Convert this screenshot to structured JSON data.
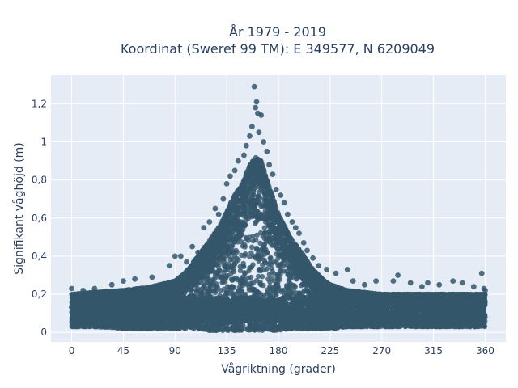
{
  "chart_data": {
    "type": "scatter",
    "title": [
      "År 1979 - 2019",
      "Koordinat (Sweref 99 TM): E 349577, N 6209049"
    ],
    "xlabel": "Vågriktning (grader)",
    "ylabel": "Signifikant våghöjd (m)",
    "xlim": [
      -18,
      378
    ],
    "ylim": [
      -0.05,
      1.35
    ],
    "xticks": [
      0,
      45,
      90,
      135,
      180,
      225,
      270,
      315,
      360
    ],
    "xtick_labels": [
      "0",
      "45",
      "90",
      "135",
      "180",
      "225",
      "270",
      "315",
      "360"
    ],
    "yticks": [
      0,
      0.2,
      0.4,
      0.6,
      0.8,
      1,
      1.2
    ],
    "ytick_labels": [
      "0",
      "0,2",
      "0,4",
      "0,6",
      "0,8",
      "1",
      "1,2"
    ],
    "grid": true,
    "colors": {
      "marker": "#34566b",
      "plot_bg": "#e5ecf6",
      "grid": "#ffffff",
      "text": "#2a3f5f"
    },
    "series": [
      {
        "envelope": {
          "x": [
            0,
            20,
            45,
            70,
            90,
            100,
            110,
            120,
            130,
            140,
            150,
            155,
            160,
            165,
            170,
            180,
            190,
            200,
            210,
            220,
            225,
            240,
            270,
            300,
            330,
            360
          ],
          "low": [
            0.03,
            0.03,
            0.02,
            0.02,
            0.02,
            0.02,
            0.02,
            0.01,
            0.01,
            0.01,
            0.01,
            0.01,
            0.01,
            0.01,
            0.01,
            0.01,
            0.02,
            0.02,
            0.02,
            0.02,
            0.02,
            0.03,
            0.03,
            0.03,
            0.03,
            0.03
          ],
          "high": [
            0.2,
            0.21,
            0.22,
            0.24,
            0.27,
            0.32,
            0.4,
            0.48,
            0.57,
            0.7,
            0.8,
            0.88,
            0.92,
            0.9,
            0.8,
            0.62,
            0.5,
            0.42,
            0.33,
            0.27,
            0.25,
            0.22,
            0.2,
            0.2,
            0.2,
            0.2
          ]
        },
        "outliers": [
          [
            0,
            0.23
          ],
          [
            10,
            0.22
          ],
          [
            20,
            0.23
          ],
          [
            35,
            0.25
          ],
          [
            45,
            0.27
          ],
          [
            55,
            0.28
          ],
          [
            70,
            0.29
          ],
          [
            85,
            0.35
          ],
          [
            90,
            0.4
          ],
          [
            95,
            0.4
          ],
          [
            100,
            0.37
          ],
          [
            105,
            0.45
          ],
          [
            110,
            0.42
          ],
          [
            115,
            0.55
          ],
          [
            120,
            0.58
          ],
          [
            125,
            0.65
          ],
          [
            128,
            0.62
          ],
          [
            132,
            0.7
          ],
          [
            135,
            0.78
          ],
          [
            138,
            0.82
          ],
          [
            142,
            0.85
          ],
          [
            145,
            0.9
          ],
          [
            150,
            0.93
          ],
          [
            152,
            0.98
          ],
          [
            155,
            1.03
          ],
          [
            157,
            1.08
          ],
          [
            159,
            1.29
          ],
          [
            160,
            1.18
          ],
          [
            161,
            1.21
          ],
          [
            162,
            1.15
          ],
          [
            163,
            1.05
          ],
          [
            165,
            1.14
          ],
          [
            167,
            1.0
          ],
          [
            170,
            0.95
          ],
          [
            172,
            0.88
          ],
          [
            175,
            0.83
          ],
          [
            178,
            0.75
          ],
          [
            182,
            0.72
          ],
          [
            185,
            0.68
          ],
          [
            188,
            0.62
          ],
          [
            192,
            0.58
          ],
          [
            195,
            0.55
          ],
          [
            198,
            0.52
          ],
          [
            202,
            0.47
          ],
          [
            205,
            0.43
          ],
          [
            210,
            0.39
          ],
          [
            215,
            0.35
          ],
          [
            222,
            0.33
          ],
          [
            230,
            0.31
          ],
          [
            240,
            0.33
          ],
          [
            245,
            0.27
          ],
          [
            255,
            0.25
          ],
          [
            265,
            0.27
          ],
          [
            280,
            0.27
          ],
          [
            284,
            0.3
          ],
          [
            295,
            0.26
          ],
          [
            305,
            0.24
          ],
          [
            310,
            0.26
          ],
          [
            320,
            0.25
          ],
          [
            332,
            0.27
          ],
          [
            340,
            0.26
          ],
          [
            350,
            0.24
          ],
          [
            357,
            0.31
          ],
          [
            359,
            0.23
          ],
          [
            360,
            0.22
          ]
        ]
      }
    ]
  }
}
